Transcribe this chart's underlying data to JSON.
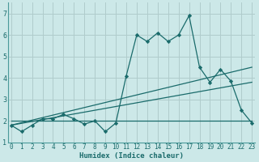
{
  "xlabel": "Humidex (Indice chaleur)",
  "background_color": "#cce8e8",
  "grid_color": "#b0cccc",
  "line_color": "#1a6b6b",
  "x_data": [
    0,
    1,
    2,
    3,
    4,
    5,
    6,
    7,
    8,
    9,
    10,
    11,
    12,
    13,
    14,
    15,
    16,
    17,
    18,
    19,
    20,
    21,
    22,
    23
  ],
  "series1": [
    1.8,
    1.5,
    1.8,
    2.1,
    2.1,
    2.3,
    2.1,
    1.85,
    2.0,
    1.5,
    1.9,
    4.1,
    6.0,
    5.7,
    6.1,
    5.7,
    6.0,
    6.9,
    4.5,
    3.8,
    4.4,
    3.85,
    2.5,
    1.9
  ],
  "line2_x": [
    0,
    23
  ],
  "line2_y": [
    1.8,
    4.5
  ],
  "line3_x": [
    0,
    23
  ],
  "line3_y": [
    1.8,
    3.8
  ],
  "line4_x": [
    0,
    23
  ],
  "line4_y": [
    2.0,
    2.0
  ],
  "xlim": [
    -0.3,
    23.3
  ],
  "ylim": [
    1.0,
    7.5
  ],
  "yticks": [
    1,
    2,
    3,
    4,
    5,
    6,
    7
  ],
  "xticks": [
    0,
    1,
    2,
    3,
    4,
    5,
    6,
    7,
    8,
    9,
    10,
    11,
    12,
    13,
    14,
    15,
    16,
    17,
    18,
    19,
    20,
    21,
    22,
    23
  ],
  "tick_fontsize": 5.5,
  "xlabel_fontsize": 6.5
}
